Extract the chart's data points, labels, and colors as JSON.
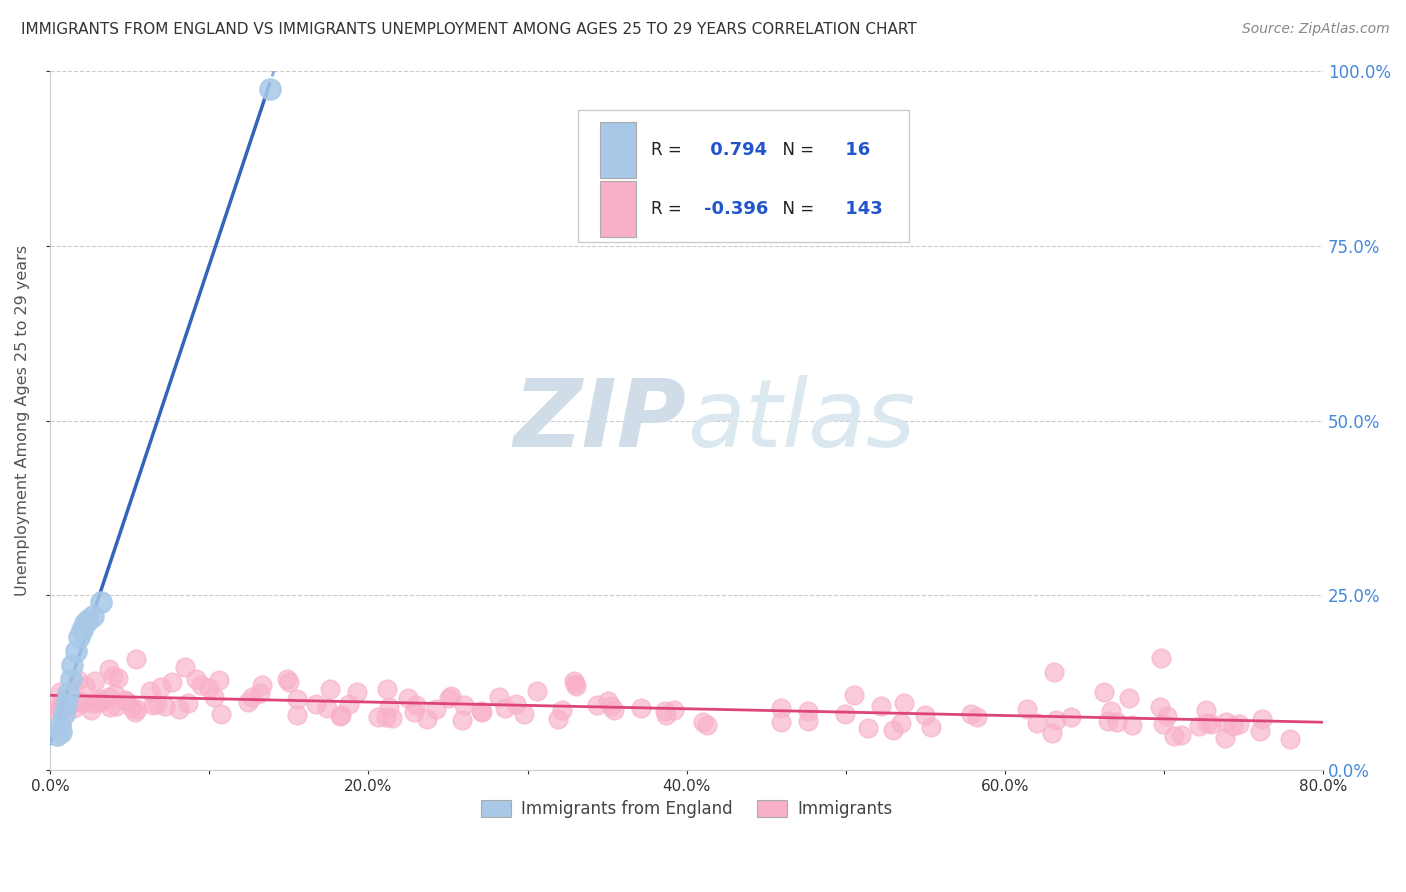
{
  "title": "IMMIGRANTS FROM ENGLAND VS IMMIGRANTS UNEMPLOYMENT AMONG AGES 25 TO 29 YEARS CORRELATION CHART",
  "source": "Source: ZipAtlas.com",
  "ylabel": "Unemployment Among Ages 25 to 29 years",
  "r_blue": 0.794,
  "n_blue": 16,
  "r_pink": -0.396,
  "n_pink": 143,
  "xlim": [
    0.0,
    0.8
  ],
  "ylim": [
    0.0,
    1.0
  ],
  "xtick_labels": [
    "0.0%",
    "",
    "20.0%",
    "",
    "40.0%",
    "",
    "60.0%",
    "",
    "80.0%"
  ],
  "xtick_values": [
    0.0,
    0.1,
    0.2,
    0.3,
    0.4,
    0.5,
    0.6,
    0.7,
    0.8
  ],
  "ytick_labels_right": [
    "0.0%",
    "25.0%",
    "50.0%",
    "75.0%",
    "100.0%"
  ],
  "ytick_values": [
    0.0,
    0.25,
    0.5,
    0.75,
    1.0
  ],
  "blue_color": "#a8c8e8",
  "pink_color": "#f8b0c8",
  "blue_line_color": "#3366bb",
  "blue_line_dashed_color": "#88aadd",
  "pink_line_color": "#dd4477",
  "watermark_zip": "ZIP",
  "watermark_atlas": "atlas",
  "watermark_color": "#d0dce8",
  "background_color": "#ffffff",
  "grid_color": "#cccccc",
  "title_color": "#333333",
  "axis_label_color": "#555555",
  "tick_color_right": "#4488dd",
  "tick_color_bottom": "#333333",
  "legend_edge_color": "#cccccc",
  "source_color": "#888888"
}
